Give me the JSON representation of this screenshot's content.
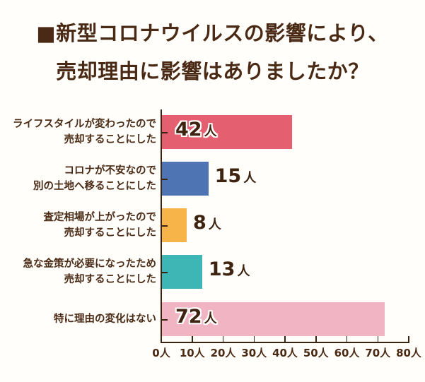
{
  "title": {
    "line1": "■新型コロナウイルスの影響により、",
    "line2": "売却理由に影響はありましたか？"
  },
  "chart_data": {
    "type": "bar",
    "orientation": "horizontal",
    "title": "新型コロナウイルスの影響により、売却理由に影響はありましたか？",
    "categories": [
      "ライフスタイルが変わったので売却することにした",
      "コロナが不安なので別の土地へ移ることにした",
      "査定相場が上がったので売却することにした",
      "急な金策が必要になったため売却することにした",
      "特に理由の変化はない"
    ],
    "values": [
      42,
      15,
      8,
      13,
      72
    ],
    "colors": [
      "#e45f6f",
      "#4e74b4",
      "#f7b449",
      "#3fb6b6",
      "#f0b4c2"
    ],
    "xlabel": "",
    "ylabel": "",
    "xlim": [
      0,
      80
    ],
    "xticks": [
      0,
      10,
      20,
      30,
      40,
      50,
      60,
      70,
      80
    ],
    "unit": "人",
    "grid": false,
    "legend": "none"
  },
  "rows": [
    {
      "line1": "ライフスタイルが変わったので",
      "line2": "売却することにした",
      "value": "42",
      "unit": "人"
    },
    {
      "line1": "コロナが不安なので",
      "line2": "別の土地へ移ることにした",
      "value": "15",
      "unit": "人"
    },
    {
      "line1": "査定相場が上がったので",
      "line2": "売却することにした",
      "value": "8",
      "unit": "人"
    },
    {
      "line1": "急な金策が必要になったため",
      "line2": "売却することにした",
      "value": "13",
      "unit": "人"
    },
    {
      "line1": "特に理由の変化はない",
      "line2": "",
      "value": "72",
      "unit": "人"
    }
  ],
  "x_axis": {
    "labels": [
      "0人",
      "10人",
      "20人",
      "30人",
      "40人",
      "50人",
      "60人",
      "70人",
      "80人"
    ]
  }
}
